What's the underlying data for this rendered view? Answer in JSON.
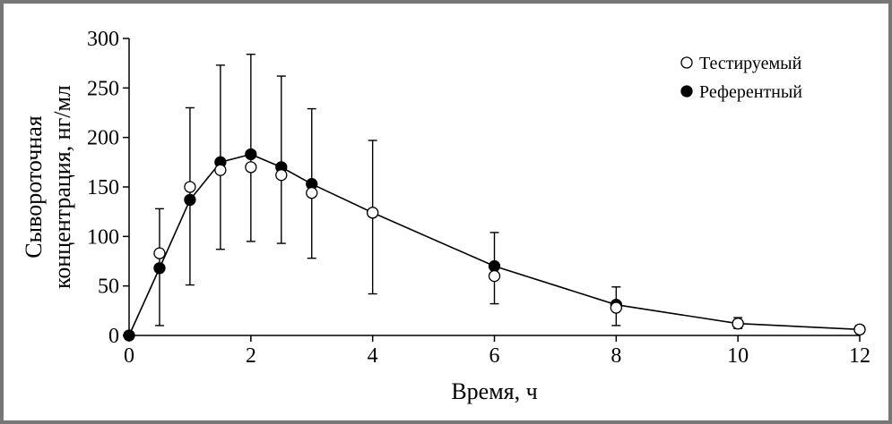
{
  "chart_data": {
    "type": "line",
    "title": "",
    "xlabel": "Время, ч",
    "ylabel": [
      "Сывороточная",
      "концентрация, нг/мл"
    ],
    "xlim": [
      0,
      12
    ],
    "ylim": [
      0,
      300
    ],
    "x_ticks": [
      "0",
      "2",
      "4",
      "6",
      "8",
      "10",
      "12"
    ],
    "y_ticks": [
      "0",
      "50",
      "100",
      "150",
      "200",
      "250",
      "300"
    ],
    "grid": false,
    "legend_position": "top-right",
    "series": [
      {
        "name": "Тестируемый",
        "marker": "open-circle",
        "x": [
          0,
          0.5,
          1,
          1.5,
          2,
          2.5,
          3,
          4,
          6,
          8,
          10,
          12
        ],
        "y": [
          0,
          83,
          150,
          167,
          170,
          162,
          144,
          124,
          60,
          28,
          12,
          6
        ]
      },
      {
        "name": "Референтный",
        "marker": "filled-circle",
        "line": true,
        "x": [
          0,
          0.5,
          1,
          1.5,
          2,
          2.5,
          3,
          4,
          6,
          8,
          10,
          12
        ],
        "y": [
          0,
          68,
          137,
          175,
          183,
          170,
          153,
          124,
          70,
          31,
          12,
          6
        ],
        "error_low": [
          0,
          10,
          51,
          87,
          95,
          93,
          78,
          42,
          32,
          10,
          7,
          2
        ],
        "error_high": [
          0,
          128,
          230,
          273,
          284,
          262,
          229,
          197,
          104,
          49,
          18,
          10
        ]
      }
    ]
  }
}
